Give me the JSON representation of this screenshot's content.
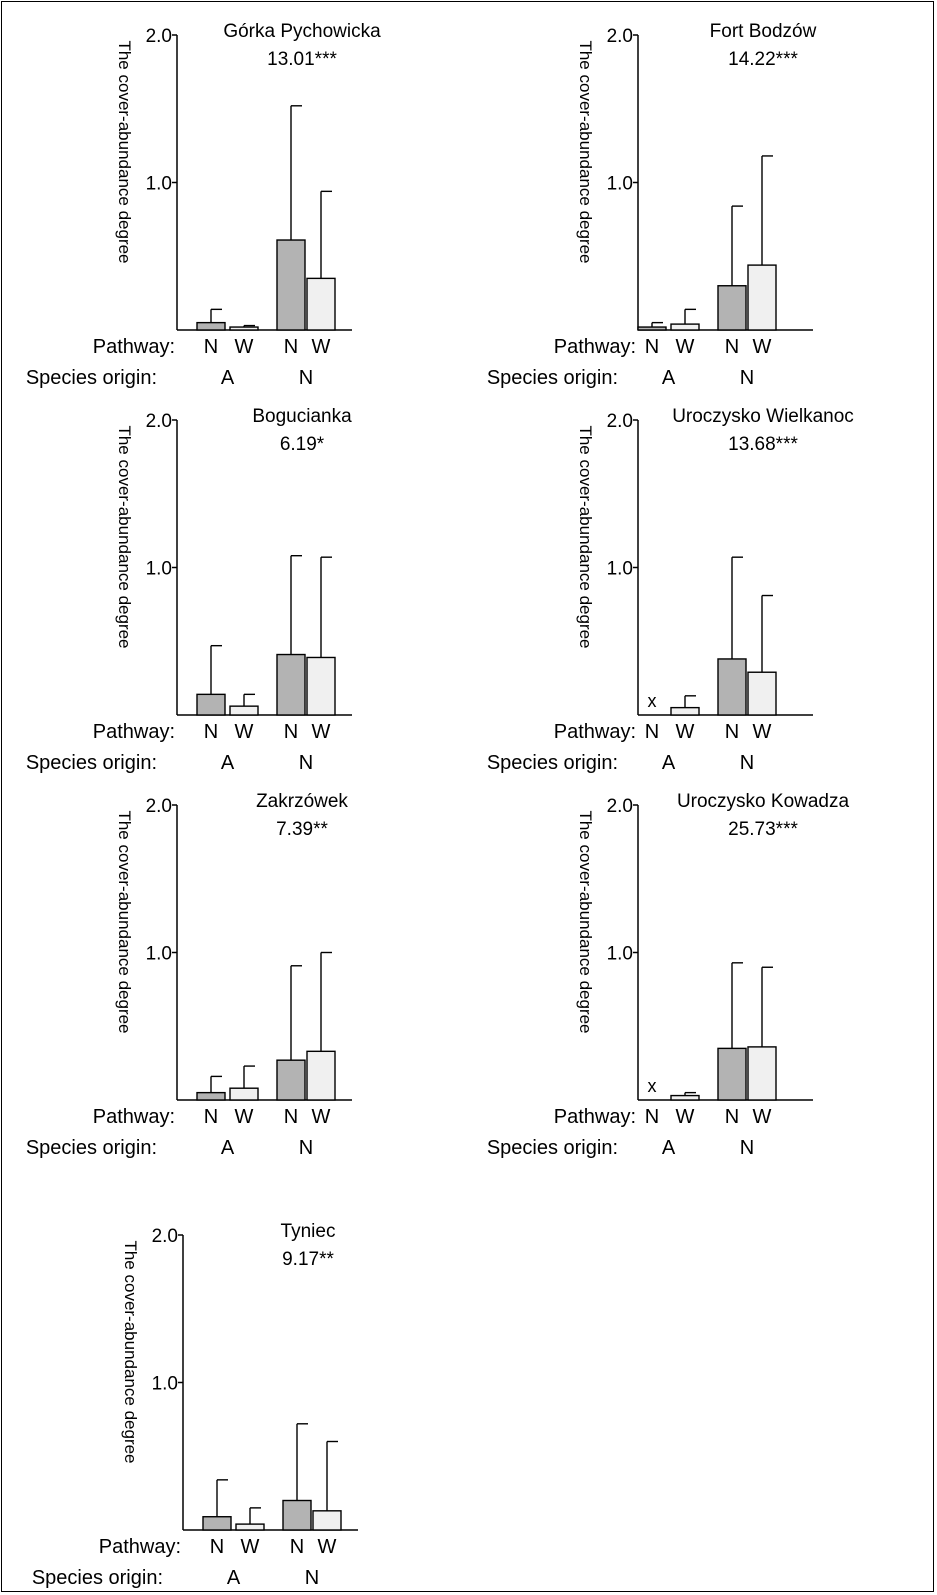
{
  "figure": {
    "y_axis_label": "The cover-abundance degree",
    "pathway_label": "Pathway:",
    "origin_label": "Species origin:",
    "colors": {
      "N": "#b3b3b3",
      "W": "#f0f0f0",
      "stroke": "#000000"
    }
  },
  "chart_data": [
    {
      "type": "bar",
      "title": "Górka Pychowicka",
      "stat": "13.01***",
      "ylabel": "The cover-abundance degree",
      "ylim": [
        0,
        2
      ],
      "yticks": [
        "1.0",
        "2.0"
      ],
      "categories": [
        "N",
        "W",
        "N",
        "W"
      ],
      "groups": [
        "A",
        "N"
      ],
      "series": [
        {
          "values": [
            0.05,
            0.02,
            0.61,
            0.35
          ],
          "errors": [
            0.14,
            0.03,
            1.52,
            0.94
          ]
        }
      ],
      "absent": []
    },
    {
      "type": "bar",
      "title": "Fort Bodzów",
      "stat": "14.22***",
      "ylabel": "The cover-abundance degree",
      "ylim": [
        0,
        2
      ],
      "yticks": [
        "1.0",
        "2.0"
      ],
      "categories": [
        "N",
        "W",
        "N",
        "W"
      ],
      "groups": [
        "A",
        "N"
      ],
      "series": [
        {
          "values": [
            0.02,
            0.04,
            0.3,
            0.44
          ],
          "errors": [
            0.05,
            0.14,
            0.84,
            1.18
          ]
        }
      ],
      "absent": []
    },
    {
      "type": "bar",
      "title": "Bogucianka",
      "stat": "6.19*",
      "ylabel": "The cover-abundance degree",
      "ylim": [
        0,
        2
      ],
      "yticks": [
        "1.0",
        "2.0"
      ],
      "categories": [
        "N",
        "W",
        "N",
        "W"
      ],
      "groups": [
        "A",
        "N"
      ],
      "series": [
        {
          "values": [
            0.14,
            0.06,
            0.41,
            0.39
          ],
          "errors": [
            0.47,
            0.14,
            1.08,
            1.07
          ]
        }
      ],
      "absent": []
    },
    {
      "type": "bar",
      "title": "Uroczysko Wielkanoc",
      "stat": "13.68***",
      "ylabel": "The cover-abundance degree",
      "ylim": [
        0,
        2
      ],
      "yticks": [
        "1.0",
        "2.0"
      ],
      "categories": [
        "N",
        "W",
        "N",
        "W"
      ],
      "groups": [
        "A",
        "N"
      ],
      "series": [
        {
          "values": [
            0,
            0.05,
            0.38,
            0.29
          ],
          "errors": [
            0,
            0.13,
            1.07,
            0.81
          ]
        }
      ],
      "absent": [
        0
      ],
      "absent_mark": "x"
    },
    {
      "type": "bar",
      "title": "Zakrzówek",
      "stat": "7.39**",
      "ylabel": "The cover-abundance degree",
      "ylim": [
        0,
        2
      ],
      "yticks": [
        "1.0",
        "2.0"
      ],
      "categories": [
        "N",
        "W",
        "N",
        "W"
      ],
      "groups": [
        "A",
        "N"
      ],
      "series": [
        {
          "values": [
            0.05,
            0.08,
            0.27,
            0.33
          ],
          "errors": [
            0.16,
            0.23,
            0.91,
            1.0
          ]
        }
      ],
      "absent": []
    },
    {
      "type": "bar",
      "title": "Uroczysko Kowadza",
      "stat": "25.73***",
      "ylabel": "The cover-abundance degree",
      "ylim": [
        0,
        2
      ],
      "yticks": [
        "1.0",
        "2.0"
      ],
      "categories": [
        "N",
        "W",
        "N",
        "W"
      ],
      "groups": [
        "A",
        "N"
      ],
      "series": [
        {
          "values": [
            0,
            0.03,
            0.35,
            0.36
          ],
          "errors": [
            0,
            0.05,
            0.93,
            0.9
          ]
        }
      ],
      "absent": [
        0
      ],
      "absent_mark": "x"
    },
    {
      "type": "bar",
      "title": "Tyniec",
      "stat": "9.17**",
      "ylabel": "The cover-abundance degree",
      "ylim": [
        0,
        2
      ],
      "yticks": [
        "1.0",
        "2.0"
      ],
      "categories": [
        "N",
        "W",
        "N",
        "W"
      ],
      "groups": [
        "A",
        "N"
      ],
      "series": [
        {
          "values": [
            0.09,
            0.04,
            0.2,
            0.13
          ],
          "errors": [
            0.34,
            0.15,
            0.72,
            0.6
          ]
        }
      ],
      "absent": []
    }
  ]
}
